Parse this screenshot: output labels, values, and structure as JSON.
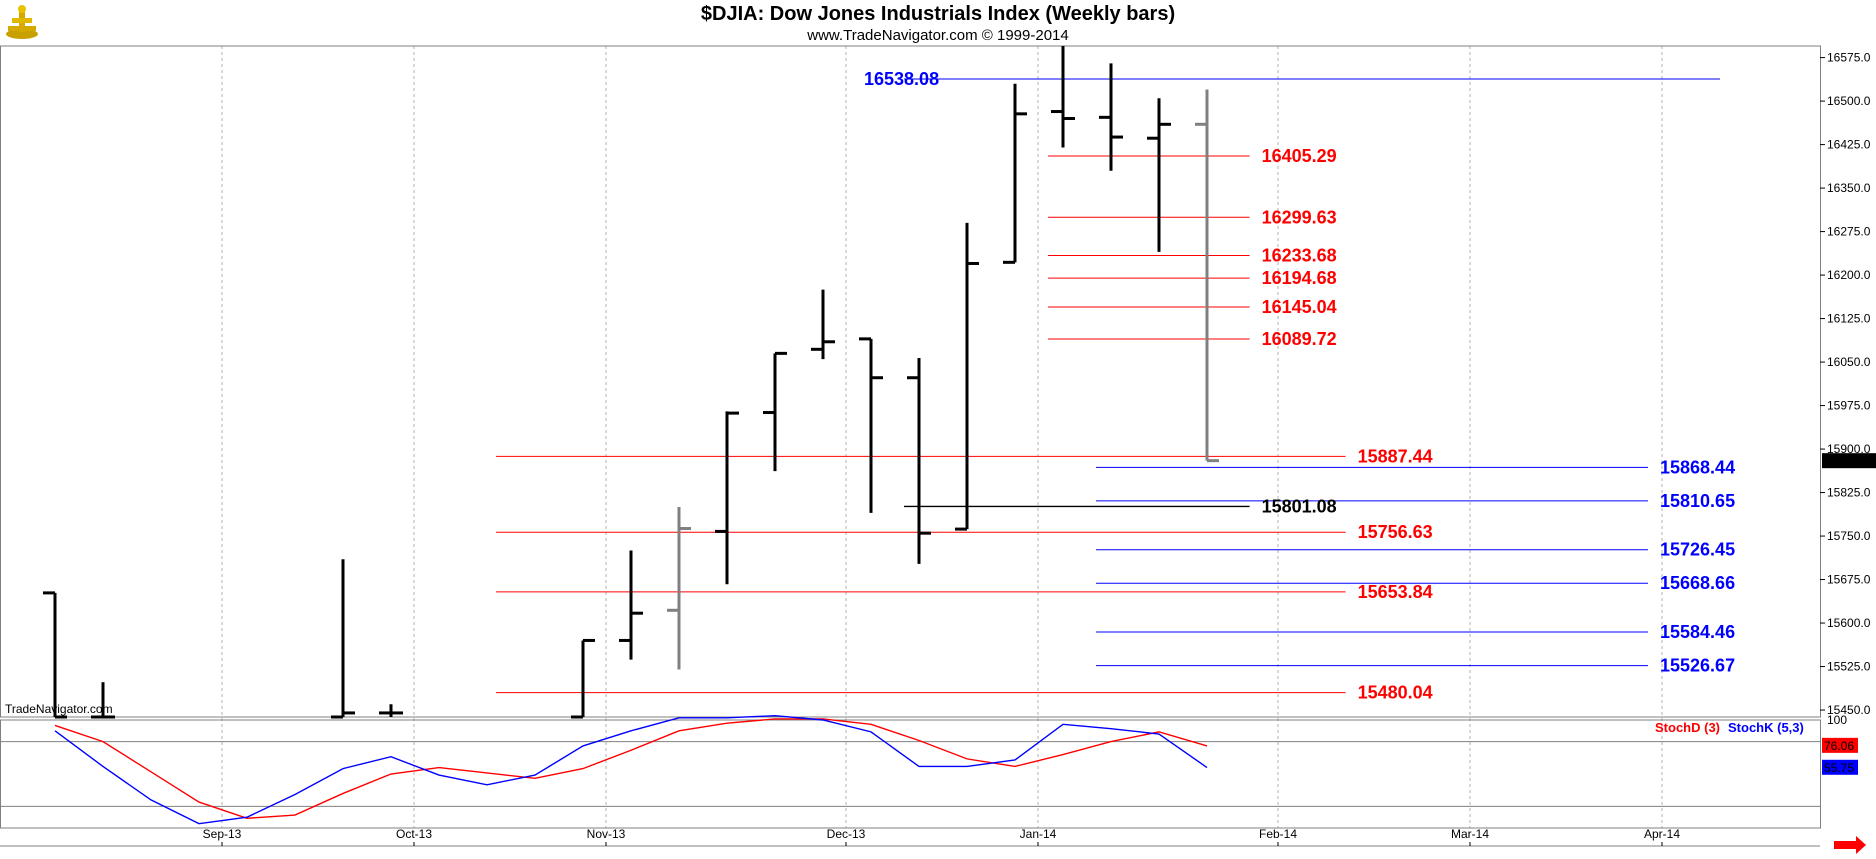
{
  "header": {
    "title": "$DJIA:  Dow Jones Industrials Index  (Weekly bars)",
    "subtitle": "www.TradeNavigator.com © 1999-2014",
    "watermark": "TradeNavigator.com"
  },
  "colors": {
    "bar": "#000000",
    "bar_current": "#808080",
    "up_tick": "#00aa00",
    "blue_level": "#0000ff",
    "red_level": "#ff0000",
    "black_level": "#000000",
    "grid": "#b0b0b0",
    "stoch_d": "#ff0000",
    "stoch_k": "#0000ff"
  },
  "chart_data": {
    "type": "ohlc",
    "price_axis": {
      "ylim": [
        15438,
        16595
      ],
      "ticks": [
        "16575.0",
        "16500.0",
        "16425.0",
        "16350.0",
        "16275.0",
        "16200.0",
        "16125.0",
        "16050.0",
        "15975.0",
        "15900.0",
        "15825.0",
        "15750.0",
        "15675.0",
        "15600.0",
        "15525.0",
        "15450.0"
      ],
      "last_price": "15879.11"
    },
    "date_axis": {
      "labels": [
        {
          "label": "Sep-13",
          "week": 4.0
        },
        {
          "label": "Oct-13",
          "week": 8.0
        },
        {
          "label": "Nov-13",
          "week": 12.0
        },
        {
          "label": "Dec-13",
          "week": 17.0
        },
        {
          "label": "Jan-14",
          "week": 21.0
        },
        {
          "label": "Feb-14",
          "week": 26.0
        },
        {
          "label": "Mar-14",
          "week": 30.0
        },
        {
          "label": "Apr-14",
          "week": 34.0
        }
      ]
    },
    "bars": [
      {
        "week": 0,
        "o": 15652,
        "h": 15652,
        "l": 15438,
        "c": 15438
      },
      {
        "week": 1,
        "o": 15438,
        "h": 15498,
        "l": 15438,
        "c": 15438
      },
      {
        "week": 6,
        "o": 15438,
        "h": 15710,
        "l": 15438,
        "c": 15445
      },
      {
        "week": 7,
        "o": 15445,
        "h": 15460,
        "l": 15438,
        "c": 15445
      },
      {
        "week": 11,
        "o": 15438,
        "h": 15570,
        "l": 15438,
        "c": 15570
      },
      {
        "week": 12,
        "o": 15570,
        "h": 15725,
        "l": 15537,
        "c": 15617
      },
      {
        "week": 13,
        "o": 15622,
        "h": 15800,
        "l": 15520,
        "c": 15763,
        "current": true
      },
      {
        "week": 14,
        "o": 15758,
        "h": 15965,
        "l": 15667,
        "c": 15962
      },
      {
        "week": 15,
        "o": 15963,
        "h": 16065,
        "l": 15862,
        "c": 16065
      },
      {
        "week": 16,
        "o": 16072,
        "h": 16175,
        "l": 16055,
        "c": 16085
      },
      {
        "week": 17,
        "o": 16090,
        "h": 16090,
        "l": 15790,
        "c": 16023
      },
      {
        "week": 18,
        "o": 16023,
        "h": 16057,
        "l": 15702,
        "c": 15755
      },
      {
        "week": 19,
        "o": 15762,
        "h": 16290,
        "l": 15762,
        "c": 16220
      },
      {
        "week": 20,
        "o": 16222,
        "h": 16530,
        "l": 16222,
        "c": 16478
      },
      {
        "week": 21,
        "o": 16482,
        "h": 16595,
        "l": 16420,
        "c": 16470
      },
      {
        "week": 22,
        "o": 16472,
        "h": 16565,
        "l": 16380,
        "c": 16438
      },
      {
        "week": 23,
        "o": 16436,
        "h": 16505,
        "l": 16240,
        "c": 16460
      },
      {
        "week": 24,
        "o": 16460,
        "h": 16520,
        "l": 15880,
        "c": 15880,
        "current": true
      }
    ],
    "levels": [
      {
        "value": 16538.08,
        "label": "16538.08",
        "color": "blue",
        "x1": 18.0,
        "x2": 35.0,
        "label_side": "left",
        "label_week": 15.5
      },
      {
        "value": 16405.29,
        "label": "16405.29",
        "color": "red",
        "x1": 21.0,
        "x2": 25.2,
        "label_side": "right",
        "label_week": 25.2
      },
      {
        "value": 16299.63,
        "label": "16299.63",
        "color": "red",
        "x1": 21.0,
        "x2": 25.2,
        "label_side": "right",
        "label_week": 25.2
      },
      {
        "value": 16233.68,
        "label": "16233.68",
        "color": "red",
        "x1": 21.0,
        "x2": 25.2,
        "label_side": "right",
        "label_week": 25.2
      },
      {
        "value": 16194.68,
        "label": "16194.68",
        "color": "red",
        "x1": 21.0,
        "x2": 25.2,
        "label_side": "right",
        "label_week": 25.2
      },
      {
        "value": 16145.04,
        "label": "16145.04",
        "color": "red",
        "x1": 21.0,
        "x2": 25.2,
        "label_side": "right",
        "label_week": 25.2
      },
      {
        "value": 16089.72,
        "label": "16089.72",
        "color": "red",
        "x1": 21.0,
        "x2": 25.2,
        "label_side": "right",
        "label_week": 25.2
      },
      {
        "value": 15887.44,
        "label": "15887.44",
        "color": "red",
        "x1": 9.5,
        "x2": 27.2,
        "label_side": "right",
        "label_week": 27.2
      },
      {
        "value": 15868.44,
        "label": "15868.44",
        "color": "blue",
        "x1": 22.0,
        "x2": 33.5,
        "label_side": "right",
        "label_week": 33.5
      },
      {
        "value": 15810.65,
        "label": "15810.65",
        "color": "blue",
        "x1": 22.0,
        "x2": 33.5,
        "label_side": "right",
        "label_week": 33.5
      },
      {
        "value": 15801.08,
        "label": "15801.08",
        "color": "black",
        "x1": 18.0,
        "x2": 25.2,
        "label_side": "right",
        "label_week": 25.2
      },
      {
        "value": 15756.63,
        "label": "15756.63",
        "color": "red",
        "x1": 9.5,
        "x2": 27.2,
        "label_side": "right",
        "label_week": 27.2
      },
      {
        "value": 15726.45,
        "label": "15726.45",
        "color": "blue",
        "x1": 22.0,
        "x2": 33.5,
        "label_side": "right",
        "label_week": 33.5
      },
      {
        "value": 15668.66,
        "label": "15668.66",
        "color": "blue",
        "x1": 22.0,
        "x2": 33.5,
        "label_side": "right",
        "label_week": 33.5
      },
      {
        "value": 15653.84,
        "label": "15653.84",
        "color": "red",
        "x1": 9.5,
        "x2": 27.2,
        "label_side": "right",
        "label_week": 27.2
      },
      {
        "value": 15584.46,
        "label": "15584.46",
        "color": "blue",
        "x1": 22.0,
        "x2": 33.5,
        "label_side": "right",
        "label_week": 33.5
      },
      {
        "value": 15526.67,
        "label": "15526.67",
        "color": "blue",
        "x1": 22.0,
        "x2": 33.5,
        "label_side": "right",
        "label_week": 33.5
      },
      {
        "value": 15480.04,
        "label": "15480.04",
        "color": "red",
        "x1": 9.5,
        "x2": 27.2,
        "label_side": "right",
        "label_week": 27.2
      }
    ],
    "stochastic": {
      "title_d": "StochD (3)",
      "title_k": "StochK (5,3)",
      "ylim": [
        0,
        100
      ],
      "tick_label": "100",
      "ref_lines": [
        80,
        20
      ],
      "last_d": "76.06",
      "last_k": "55.75",
      "stoch_d": [
        {
          "week": 0,
          "v": 95
        },
        {
          "week": 1,
          "v": 80
        },
        {
          "week": 2,
          "v": 52
        },
        {
          "week": 3,
          "v": 24
        },
        {
          "week": 4,
          "v": 9
        },
        {
          "week": 5,
          "v": 12
        },
        {
          "week": 6,
          "v": 32
        },
        {
          "week": 7,
          "v": 50
        },
        {
          "week": 8,
          "v": 56
        },
        {
          "week": 9,
          "v": 51
        },
        {
          "week": 10,
          "v": 46
        },
        {
          "week": 11,
          "v": 55
        },
        {
          "week": 12,
          "v": 72
        },
        {
          "week": 13,
          "v": 90
        },
        {
          "week": 14,
          "v": 97
        },
        {
          "week": 15,
          "v": 101
        },
        {
          "week": 16,
          "v": 101
        },
        {
          "week": 17,
          "v": 96
        },
        {
          "week": 18,
          "v": 81
        },
        {
          "week": 19,
          "v": 64
        },
        {
          "week": 20,
          "v": 57
        },
        {
          "week": 21,
          "v": 68
        },
        {
          "week": 22,
          "v": 80
        },
        {
          "week": 23,
          "v": 89
        },
        {
          "week": 24,
          "v": 76
        }
      ],
      "stoch_k": [
        {
          "week": 0,
          "v": 90
        },
        {
          "week": 1,
          "v": 57
        },
        {
          "week": 2,
          "v": 26
        },
        {
          "week": 3,
          "v": 4
        },
        {
          "week": 4,
          "v": 10
        },
        {
          "week": 5,
          "v": 31
        },
        {
          "week": 6,
          "v": 55
        },
        {
          "week": 7,
          "v": 66
        },
        {
          "week": 8,
          "v": 49
        },
        {
          "week": 9,
          "v": 40
        },
        {
          "week": 10,
          "v": 49
        },
        {
          "week": 11,
          "v": 76
        },
        {
          "week": 12,
          "v": 90
        },
        {
          "week": 13,
          "v": 102
        },
        {
          "week": 14,
          "v": 102
        },
        {
          "week": 15,
          "v": 104
        },
        {
          "week": 16,
          "v": 100
        },
        {
          "week": 17,
          "v": 89
        },
        {
          "week": 18,
          "v": 57
        },
        {
          "week": 19,
          "v": 57
        },
        {
          "week": 20,
          "v": 63
        },
        {
          "week": 21,
          "v": 96
        },
        {
          "week": 22,
          "v": 92
        },
        {
          "week": 23,
          "v": 87
        },
        {
          "week": 24,
          "v": 56
        }
      ]
    }
  }
}
